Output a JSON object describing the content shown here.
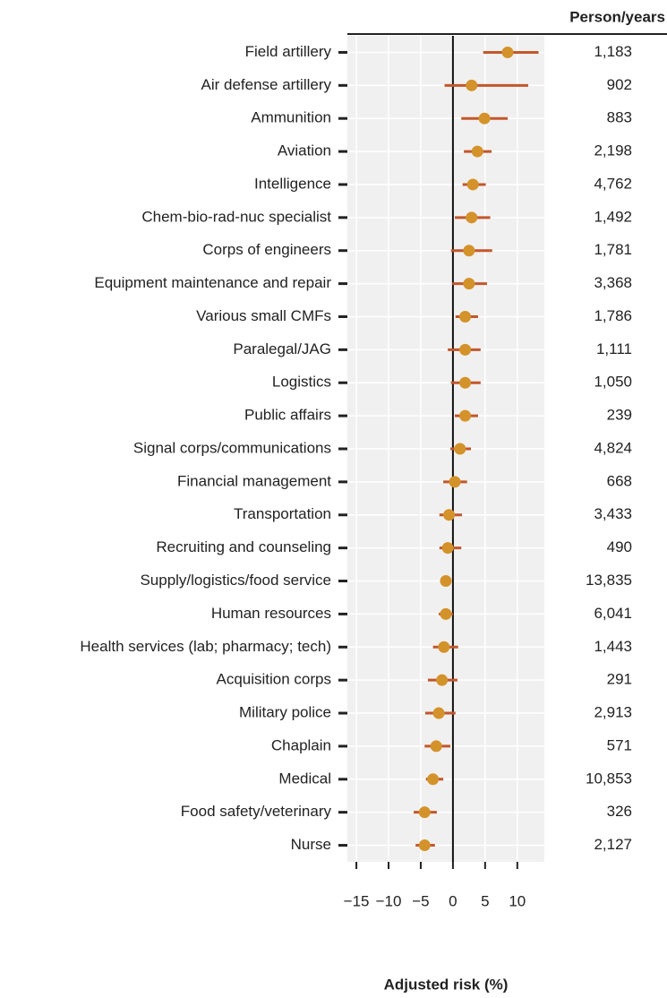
{
  "chart_data": {
    "type": "forest",
    "xlabel": "Adjusted risk (%)",
    "categories": [
      "Field artillery",
      "Air defense artillery",
      "Ammunition",
      "Aviation",
      "Intelligence",
      "Chem-bio-rad-nuc specialist",
      "Corps of engineers",
      "Equipment maintenance and repair",
      "Various small CMFs",
      "Paralegal/JAG",
      "Logistics",
      "Public affairs",
      "Signal corps/communications",
      "Financial management",
      "Transportation",
      "Recruiting and counseling",
      "Supply/logistics/food service",
      "Human resources",
      "Health services (lab; pharmacy; tech)",
      "Acquisition corps",
      "Military police",
      "Chaplain",
      "Medical",
      "Food safety/veterinary",
      "Nurse"
    ],
    "values": [
      8.5,
      2.9,
      4.9,
      3.8,
      3.1,
      2.9,
      2.5,
      2.5,
      1.9,
      1.9,
      1.9,
      1.9,
      1.1,
      0.3,
      -0.6,
      -0.8,
      -1.1,
      -1.1,
      -1.4,
      -1.7,
      -2.2,
      -2.6,
      -3.1,
      -4.4,
      -4.4
    ],
    "ci_low": [
      4.7,
      -1.3,
      1.3,
      1.7,
      1.5,
      0.3,
      -0.3,
      -0.1,
      0.4,
      -0.8,
      -0.3,
      0.3,
      -0.4,
      -1.5,
      -2.1,
      -2.1,
      -1.8,
      -2.2,
      -3.1,
      -3.9,
      -4.3,
      -4.4,
      -4.2,
      -6.1,
      -5.8
    ],
    "ci_high": [
      13.3,
      11.7,
      8.5,
      6.0,
      5.1,
      5.8,
      6.1,
      5.3,
      3.9,
      4.3,
      4.3,
      3.9,
      2.8,
      2.2,
      1.4,
      1.3,
      -0.3,
      0,
      0.8,
      0.7,
      0.4,
      -0.4,
      -1.5,
      -2.5,
      -2.8
    ],
    "point_color": "#d4922a",
    "ci_color": "#c3572b",
    "xlim": [
      -16.4,
      14.2
    ],
    "xticks": [
      {
        "value": -15,
        "label": "−15"
      },
      {
        "value": -10,
        "label": "−10"
      },
      {
        "value": -5,
        "label": "−5"
      },
      0,
      5,
      10
    ],
    "grid": true,
    "person_years": {
      "title": "Person/years",
      "values": [
        1183,
        902,
        883,
        2198,
        4762,
        1492,
        1781,
        3368,
        1786,
        1111,
        1050,
        239,
        4824,
        668,
        3433,
        490,
        13835,
        6041,
        1443,
        291,
        2913,
        571,
        10853,
        326,
        2127
      ],
      "value_labels": [
        "1,183",
        "902",
        "883",
        "2,198",
        "4,762",
        "1,492",
        "1,781",
        "3,368",
        "1,786",
        "1,111",
        "1,050",
        "239",
        "4,824",
        "668",
        "3,433",
        "490",
        "13,835",
        "6,041",
        "1,443",
        "291",
        "2,913",
        "571",
        "10,853",
        "326",
        "2,127"
      ]
    }
  }
}
